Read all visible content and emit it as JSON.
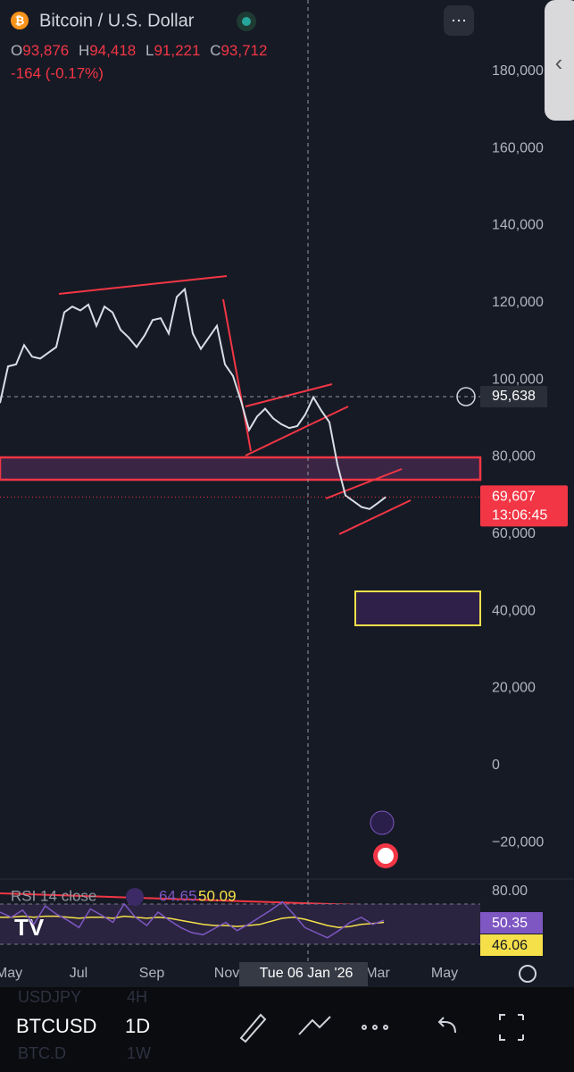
{
  "header": {
    "title": "Bitcoin / U.S. Dollar",
    "o_label": "O",
    "open": "93,876",
    "h_label": "H",
    "high": "94,418",
    "l_label": "L",
    "low": "91,221",
    "c_label": "C",
    "close": "93,712",
    "change": "-164 (-0.17%)"
  },
  "chart_data": {
    "type": "line",
    "color": "#d9dde6",
    "ylim": [
      -29700,
      198500
    ],
    "yticks": [
      {
        "value": 180000,
        "label": "180,000"
      },
      {
        "value": 160000,
        "label": "160,000"
      },
      {
        "value": 140000,
        "label": "140,000"
      },
      {
        "value": 120000,
        "label": "120,000"
      },
      {
        "value": 100000,
        "label": "100,000"
      },
      {
        "value": 80000,
        "label": "80,000"
      },
      {
        "value": 60000,
        "label": "60,000"
      },
      {
        "value": 40000,
        "label": "40,000"
      },
      {
        "value": 20000,
        "label": "20,000"
      },
      0,
      {
        "value": -20000,
        "label": "−20,000"
      }
    ],
    "values": [
      94000,
      103500,
      104000,
      109000,
      106000,
      105500,
      107000,
      108500,
      117500,
      119000,
      118000,
      119500,
      114000,
      119000,
      117500,
      113000,
      111000,
      108500,
      111500,
      115500,
      116000,
      112000,
      121500,
      123500,
      112000,
      108000,
      111000,
      114000,
      104000,
      101000,
      94500,
      87000,
      90500,
      92500,
      90000,
      88500,
      87500,
      88000,
      91000,
      95500,
      92000,
      89000,
      78000,
      70000,
      68500,
      67000,
      66500,
      68000,
      69600
    ],
    "crosshair_price": {
      "value": 95638,
      "label": "95,638"
    },
    "last_price": {
      "value": 69607,
      "label": "69,607"
    },
    "countdown": "13:06:45",
    "time_labels": [
      "May",
      "Jul",
      "Sep",
      "Nov",
      "Mar",
      "May"
    ],
    "crosshair_time": "Tue 06 Jan '26"
  },
  "rsi": {
    "title": "RSI 14 close",
    "rsi_value": "64.65",
    "ma_value": "50.09",
    "level": "80.00",
    "rsi_label": "50.35",
    "ma_label": "46.06",
    "rsi_values": [
      60,
      55,
      62,
      48,
      66,
      58,
      52,
      45,
      63,
      57,
      50,
      68,
      55,
      47,
      60,
      52,
      45,
      40,
      38,
      44,
      50,
      42,
      48,
      55,
      62,
      70,
      58,
      45,
      40,
      35,
      42,
      50,
      55,
      48,
      52
    ],
    "ma_values": [
      55,
      55,
      56,
      55,
      56,
      56,
      55,
      54,
      55,
      55,
      54,
      56,
      55,
      54,
      55,
      54,
      52,
      50,
      48,
      47,
      47,
      46,
      47,
      48,
      51,
      54,
      55,
      53,
      50,
      47,
      45,
      46,
      48,
      49,
      50
    ]
  },
  "toolbar": {
    "symbol": "BTCUSD",
    "interval": "1D",
    "ghost_symbol_1": "USDJPY",
    "ghost_interval_1": "4H",
    "ghost_symbol_2": "BTC.D",
    "ghost_interval_2": "1W"
  }
}
